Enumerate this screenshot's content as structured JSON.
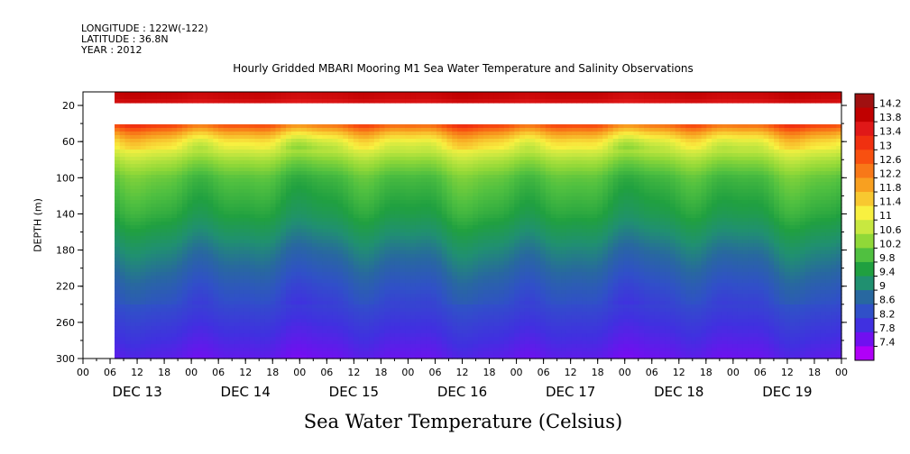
{
  "header": {
    "longitude": "LONGITUDE : 122W(-122)",
    "latitude": "LATITUDE : 36.8N",
    "year": "YEAR : 2012"
  },
  "chart_data": {
    "type": "heatmap",
    "title": "Hourly Gridded MBARI Mooring M1 Sea Water Temperature and Salinity Observations",
    "xlabel": "Sea Water Temperature (Celsius)",
    "ylabel": "DEPTH (m)",
    "x_hour_ticks": [
      "00",
      "06",
      "12",
      "18",
      "00",
      "06",
      "12",
      "18",
      "00",
      "06",
      "12",
      "18",
      "00",
      "06",
      "12",
      "18",
      "00",
      "06",
      "12",
      "18",
      "00",
      "06",
      "12",
      "18",
      "00",
      "06",
      "12",
      "18",
      "00"
    ],
    "x_day_labels": [
      "DEC 13",
      "DEC 14",
      "DEC 15",
      "DEC 16",
      "DEC 17",
      "DEC 18",
      "DEC 19"
    ],
    "x_range_hours": [
      0,
      168
    ],
    "data_start_hour": 7,
    "y_ticks": [
      "20",
      "60",
      "100",
      "140",
      "180",
      "220",
      "260",
      "300"
    ],
    "y_range": [
      300,
      5
    ],
    "y_inverted": true,
    "colorbar_ticks": [
      "14.2",
      "13.8",
      "13.4",
      "13",
      "12.6",
      "12.2",
      "11.8",
      "11.4",
      "11",
      "10.6",
      "10.2",
      "9.8",
      "9.4",
      "9",
      "8.6",
      "8.2",
      "7.8",
      "7.4"
    ],
    "color_range": [
      7.2,
      14.4
    ],
    "depth_profile": [
      {
        "depth": 10,
        "temp": 13.9
      },
      {
        "depth": 40,
        "temp": 12.9
      },
      {
        "depth": 50,
        "temp": 11.9
      },
      {
        "depth": 60,
        "temp": 11.2
      },
      {
        "depth": 80,
        "temp": 10.5
      },
      {
        "depth": 100,
        "temp": 10.0
      },
      {
        "depth": 140,
        "temp": 9.6
      },
      {
        "depth": 180,
        "temp": 9.0
      },
      {
        "depth": 220,
        "temp": 8.5
      },
      {
        "depth": 260,
        "temp": 8.1
      },
      {
        "depth": 300,
        "temp": 7.7
      }
    ],
    "data_gap_depths_m": [
      15,
      40
    ]
  },
  "colors": {
    "palette": [
      "#a01010",
      "#c00000",
      "#e01818",
      "#f03010",
      "#f85010",
      "#f87818",
      "#f8a020",
      "#f8c830",
      "#f8f040",
      "#c8e840",
      "#90d838",
      "#50c040",
      "#20a040",
      "#209070",
      "#2868a0",
      "#3050c8",
      "#4030e0",
      "#7010f0",
      "#b000f8"
    ]
  }
}
